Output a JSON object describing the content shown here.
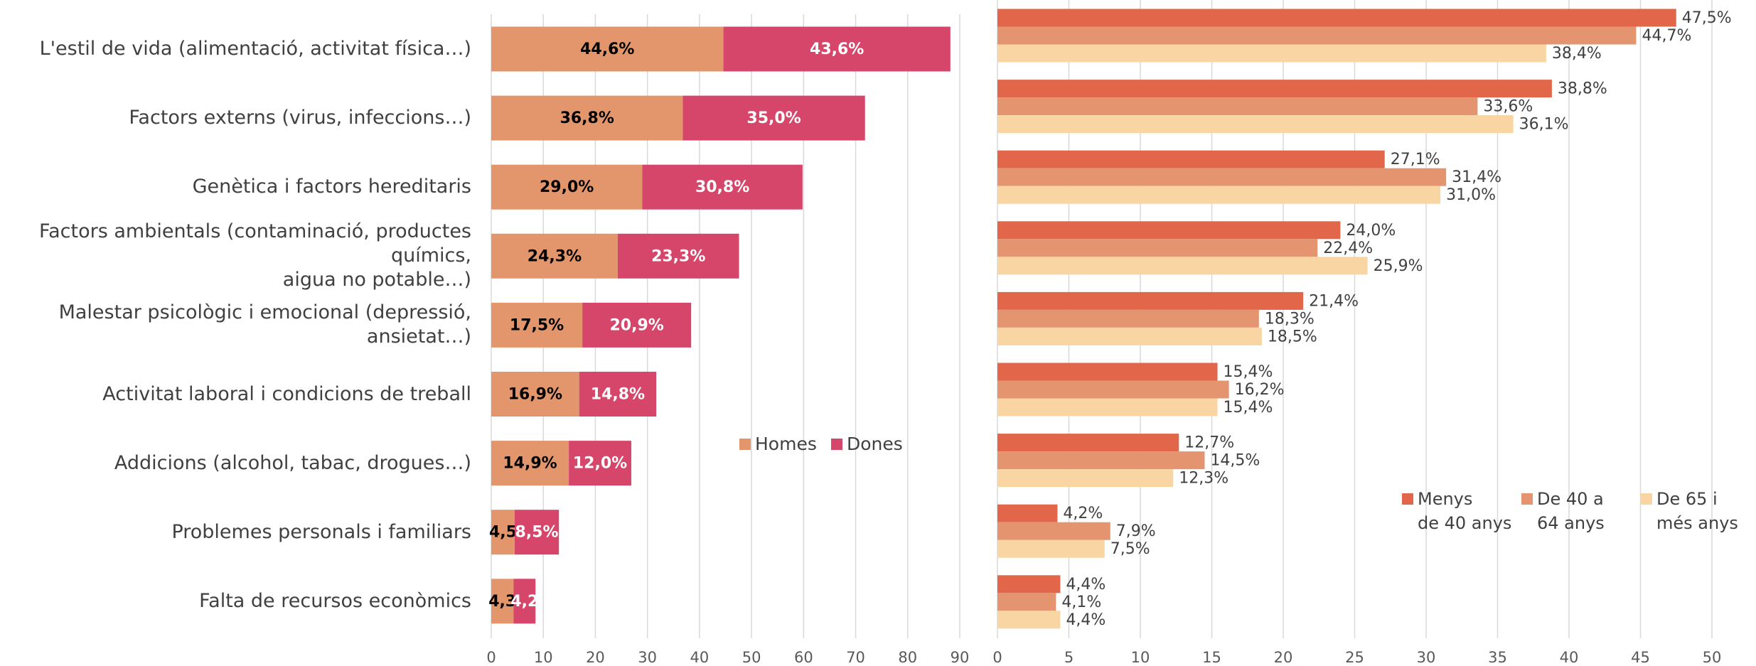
{
  "chart_data": [
    {
      "type": "bar",
      "stacked": true,
      "categories": [
        "L'estil de vida (alimentació, activitat física…)",
        "Factors externs (virus, infeccions…)",
        "Genètica i factors hereditaris",
        "Factors ambientals (contaminació, productes químics,\naigua no potable…)",
        "Malestar psicològic i emocional (depressió, ansietat…)",
        "Activitat laboral i condicions de treball",
        "Addicions (alcohol, tabac, drogues…)",
        "Problemes personals i familiars",
        "Falta de recursos econòmics"
      ],
      "series": [
        {
          "name": "Homes",
          "color": "#e3956b",
          "label_color": "#000000",
          "values": [
            44.6,
            36.8,
            29.0,
            24.3,
            17.5,
            16.9,
            14.9,
            4.5,
            4.3
          ],
          "value_labels": [
            "44,6%",
            "36,8%",
            "29,0%",
            "24,3%",
            "17,5%",
            "16,9%",
            "14,9%",
            "4,5",
            "4,3"
          ]
        },
        {
          "name": "Dones",
          "color": "#d6466a",
          "label_color": "#ffffff",
          "values": [
            43.6,
            35.0,
            30.8,
            23.3,
            20.9,
            14.8,
            12.0,
            8.5,
            4.2
          ],
          "value_labels": [
            "43,6%",
            "35,0%",
            "30,8%",
            "23,3%",
            "20,9%",
            "14,8%",
            "12,0%",
            "8,5%",
            "4,2"
          ]
        }
      ],
      "xlim": [
        0,
        90
      ],
      "xticks": [
        0,
        10,
        20,
        30,
        40,
        50,
        60,
        70,
        80,
        90
      ],
      "grid": true
    },
    {
      "type": "bar",
      "stacked": false,
      "series": [
        {
          "name": "Menys\nde 40 anys",
          "color": "#e2674a",
          "values": [
            47.5,
            38.8,
            27.1,
            24.0,
            21.4,
            15.4,
            12.7,
            4.2,
            4.4
          ],
          "value_labels": [
            "47,5%",
            "38,8%",
            "27,1%",
            "24,0%",
            "21,4%",
            "15,4%",
            "12,7%",
            "4,2%",
            "4,4%"
          ]
        },
        {
          "name": "De 40 a\n64 anys",
          "color": "#e59470",
          "values": [
            44.7,
            33.6,
            31.4,
            22.4,
            18.3,
            16.2,
            14.5,
            7.9,
            4.1
          ],
          "value_labels": [
            "44,7%",
            "33,6%",
            "31,4%",
            "22,4%",
            "18,3%",
            "16,2%",
            "14,5%",
            "7,9%",
            "4,1%"
          ]
        },
        {
          "name": "De 65 i\nmés anys",
          "color": "#f8d5a2",
          "values": [
            38.4,
            36.1,
            31.0,
            25.9,
            18.5,
            15.4,
            12.3,
            7.5,
            4.4
          ],
          "value_labels": [
            "38,4%",
            "36,1%",
            "31,0%",
            "25,9%",
            "18,5%",
            "15,4%",
            "12,3%",
            "7,5%",
            "4,4%"
          ]
        }
      ],
      "xlim": [
        0,
        50
      ],
      "xticks": [
        0,
        5,
        10,
        15,
        20,
        25,
        30,
        35,
        40,
        45,
        50
      ],
      "grid": true
    }
  ]
}
